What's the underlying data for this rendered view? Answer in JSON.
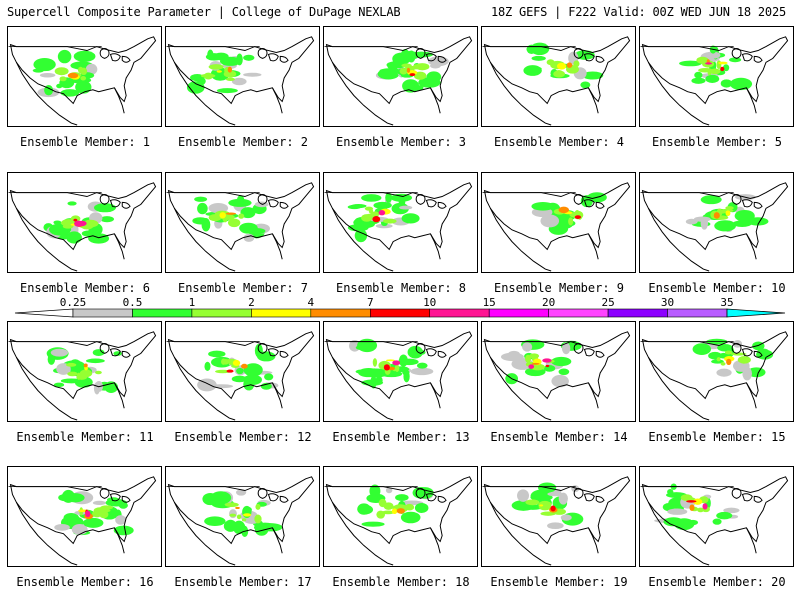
{
  "header": {
    "left_title": "Supercell Composite Parameter | College of DuPage NEXLAB",
    "right_title": "18Z GEFS | F222 Valid: 00Z WED JUN 18 2025"
  },
  "member_label_prefix": "Ensemble Member:",
  "members": [
    {
      "label": "Ensemble Member: 1"
    },
    {
      "label": "Ensemble Member: 2"
    },
    {
      "label": "Ensemble Member: 3"
    },
    {
      "label": "Ensemble Member: 4"
    },
    {
      "label": "Ensemble Member: 5"
    },
    {
      "label": "Ensemble Member: 6"
    },
    {
      "label": "Ensemble Member: 7"
    },
    {
      "label": "Ensemble Member: 8"
    },
    {
      "label": "Ensemble Member: 9"
    },
    {
      "label": "Ensemble Member: 10"
    },
    {
      "label": "Ensemble Member: 11"
    },
    {
      "label": "Ensemble Member: 12"
    },
    {
      "label": "Ensemble Member: 13"
    },
    {
      "label": "Ensemble Member: 14"
    },
    {
      "label": "Ensemble Member: 15"
    },
    {
      "label": "Ensemble Member: 16"
    },
    {
      "label": "Ensemble Member: 17"
    },
    {
      "label": "Ensemble Member: 18"
    },
    {
      "label": "Ensemble Member: 19"
    },
    {
      "label": "Ensemble Member: 20"
    }
  ],
  "colorbar": {
    "labels": [
      "0.25",
      "0.5",
      "1",
      "2",
      "4",
      "7",
      "10",
      "15",
      "20",
      "25",
      "30",
      "35"
    ],
    "colors": [
      "#c8c8c8",
      "#32ff32",
      "#96ff32",
      "#ffff00",
      "#ff8c00",
      "#ff0000",
      "#ff1493",
      "#ff00ff",
      "#ff44ff",
      "#8c00ff",
      "#b85cff",
      "#00ffff"
    ]
  }
}
